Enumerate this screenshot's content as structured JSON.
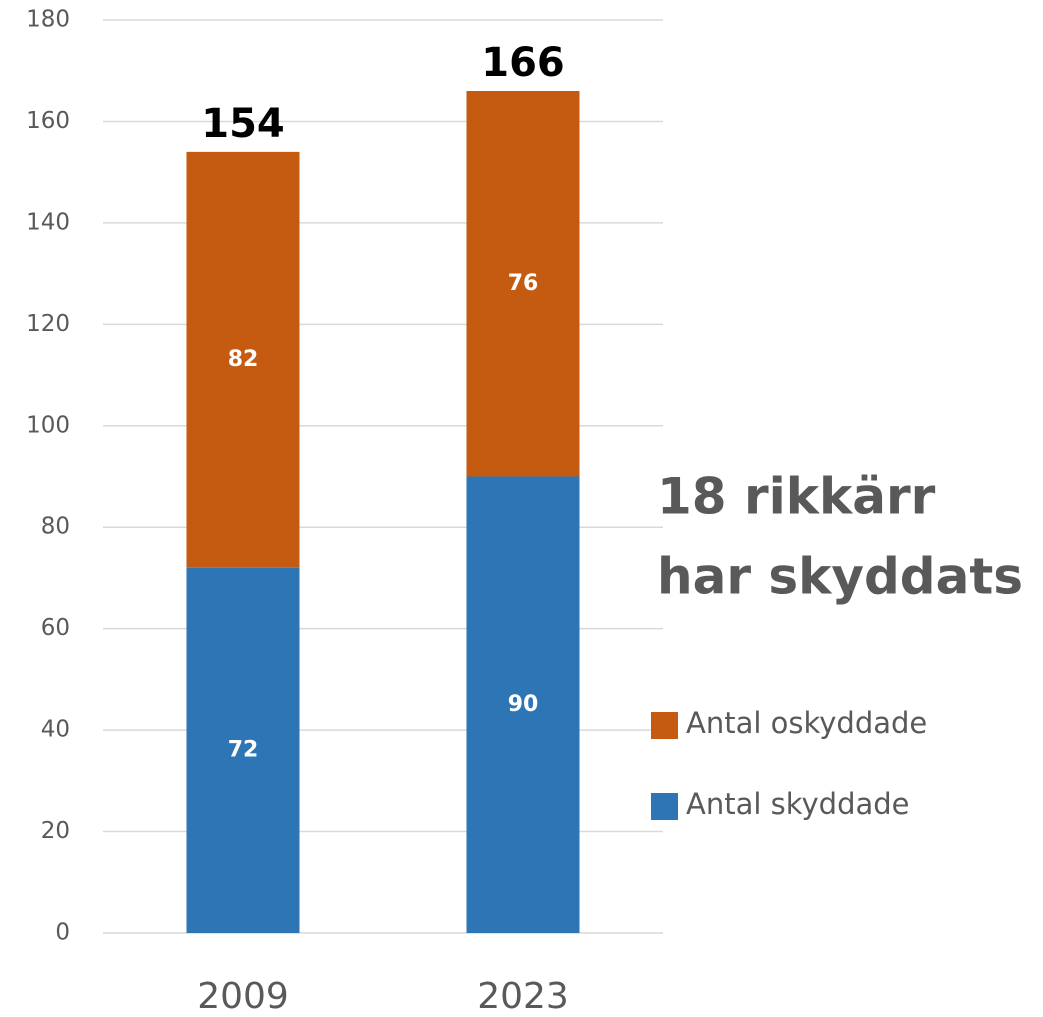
{
  "chart_data": {
    "type": "stacked_bar",
    "categories": [
      "2009",
      "2023"
    ],
    "series": [
      {
        "name": "Antal skyddade",
        "color": "#2e75b6",
        "values": [
          72,
          90
        ]
      },
      {
        "name": "Antal oskyddade",
        "color": "#c55a11",
        "values": [
          82,
          76
        ]
      }
    ],
    "totals": [
      154,
      166
    ],
    "annotation": [
      "18 rikkärr",
      "har skyddats"
    ],
    "ylim": [
      0,
      180
    ],
    "yticks": [
      0,
      20,
      40,
      60,
      80,
      100,
      120,
      140,
      160,
      180
    ],
    "grid": true,
    "legend": "right"
  }
}
